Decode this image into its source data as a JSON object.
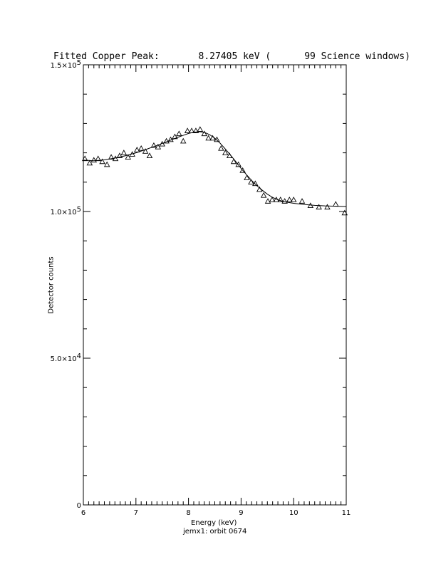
{
  "chart_data": {
    "type": "scatter",
    "title": "Fitted Copper Peak:       8.27405 keV (      99 Science windows)",
    "xlabel": "Energy (keV)",
    "ylabel": "Detector counts",
    "footer": "jemx1: orbit 0674",
    "xlim": [
      6,
      11
    ],
    "ylim": [
      0,
      150000
    ],
    "xticks": [
      "6",
      "7",
      "8",
      "9",
      "10",
      "11"
    ],
    "xtick_values": [
      6,
      7,
      8,
      9,
      10,
      11
    ],
    "yticks": [
      {
        "value": 0,
        "mantissa": "0",
        "exp": ""
      },
      {
        "value": 50000,
        "mantissa": "5.0×10",
        "exp": "4"
      },
      {
        "value": 100000,
        "mantissa": "1.0×10",
        "exp": "5"
      },
      {
        "value": 150000,
        "mantissa": "1.5×10",
        "exp": "5"
      }
    ],
    "marker": "open-triangle",
    "series": [
      {
        "kind": "data",
        "x": [
          6.03,
          6.12,
          6.2,
          6.28,
          6.36,
          6.45,
          6.53,
          6.61,
          6.69,
          6.77,
          6.85,
          6.93,
          7.02,
          7.1,
          7.18,
          7.26,
          7.34,
          7.42,
          7.5,
          7.58,
          7.66,
          7.74,
          7.82,
          7.9,
          7.98,
          8.06,
          8.14,
          8.22,
          8.3,
          8.38,
          8.46,
          8.54,
          8.62,
          8.7,
          8.78,
          8.86,
          8.95,
          9.03,
          9.11,
          9.19,
          9.27,
          9.35,
          9.43,
          9.51,
          9.59,
          9.67,
          9.75,
          9.83,
          9.92,
          10.0,
          10.16,
          10.32,
          10.48,
          10.64,
          10.8,
          10.97
        ],
        "y": [
          118000,
          116500,
          117500,
          118000,
          117000,
          116000,
          118500,
          118000,
          119000,
          120000,
          118500,
          119500,
          121000,
          121500,
          120500,
          119000,
          122500,
          122000,
          123000,
          124000,
          124500,
          125500,
          126500,
          124000,
          127500,
          127500,
          127500,
          128000,
          126500,
          125000,
          125000,
          124500,
          121500,
          120000,
          119000,
          117000,
          116000,
          114000,
          111500,
          110000,
          109500,
          107500,
          105500,
          103500,
          104000,
          104000,
          104000,
          103500,
          104000,
          104000,
          103500,
          102000,
          101500,
          101500,
          102500,
          99500
        ]
      },
      {
        "kind": "fit",
        "x": [
          6.0,
          6.2,
          6.4,
          6.6,
          6.8,
          7.0,
          7.2,
          7.4,
          7.6,
          7.8,
          8.0,
          8.1,
          8.2,
          8.3,
          8.4,
          8.5,
          8.6,
          8.7,
          8.8,
          8.9,
          9.0,
          9.1,
          9.2,
          9.3,
          9.4,
          9.5,
          9.6,
          9.7,
          9.8,
          10.0,
          10.2,
          10.4,
          10.6,
          10.8,
          11.0
        ],
        "y": [
          117500,
          117300,
          117600,
          118200,
          119000,
          120000,
          121200,
          122500,
          123900,
          125300,
          126600,
          127000,
          127200,
          127000,
          126200,
          125000,
          123300,
          121300,
          119200,
          117000,
          114700,
          112600,
          110600,
          108800,
          107300,
          105900,
          104800,
          104000,
          103400,
          102800,
          102400,
          102100,
          101900,
          101800,
          101700
        ]
      }
    ]
  }
}
